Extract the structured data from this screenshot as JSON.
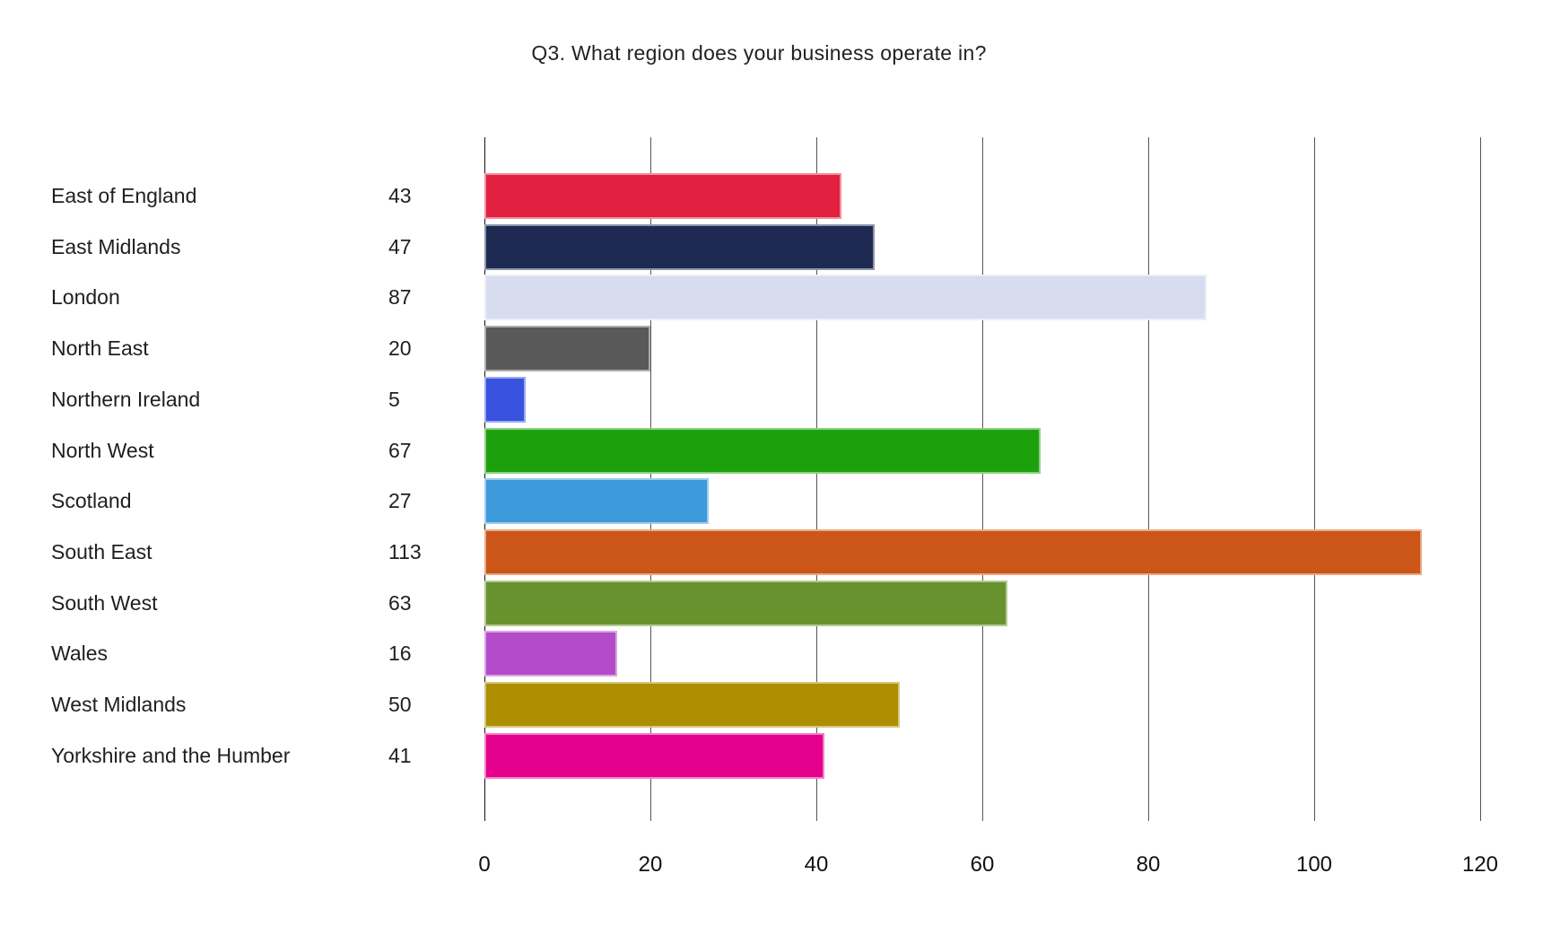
{
  "chart_data": {
    "type": "bar",
    "orientation": "horizontal",
    "title": "Q3. What region does your business operate in?",
    "categories": [
      "East of England",
      "East Midlands",
      "London",
      "North East",
      "Northern Ireland",
      "North West",
      "Scotland",
      "South East",
      "South West",
      "Wales",
      "West Midlands",
      "Yorkshire and the Humber"
    ],
    "values": [
      43,
      47,
      87,
      20,
      5,
      67,
      27,
      113,
      63,
      16,
      50,
      41
    ],
    "bar_colors": [
      "#E11F3E",
      "#1E2A52",
      "#D7DCEF",
      "#595959",
      "#3853DE",
      "#1CA10D",
      "#3D9ADB",
      "#CC5617",
      "#68922D",
      "#B44BC9",
      "#AC8E00",
      "#E4008C"
    ],
    "xlabel": "",
    "ylabel": "",
    "xlim": [
      0,
      120
    ],
    "xticks": [
      0,
      20,
      40,
      60,
      80,
      100,
      120
    ],
    "grid": "vertical-only",
    "legend_position": "none",
    "value_labels": "left column beside category names"
  },
  "colors": {
    "background": "#ffffff",
    "gridline": "#555555",
    "text": "#1f1f1f"
  }
}
